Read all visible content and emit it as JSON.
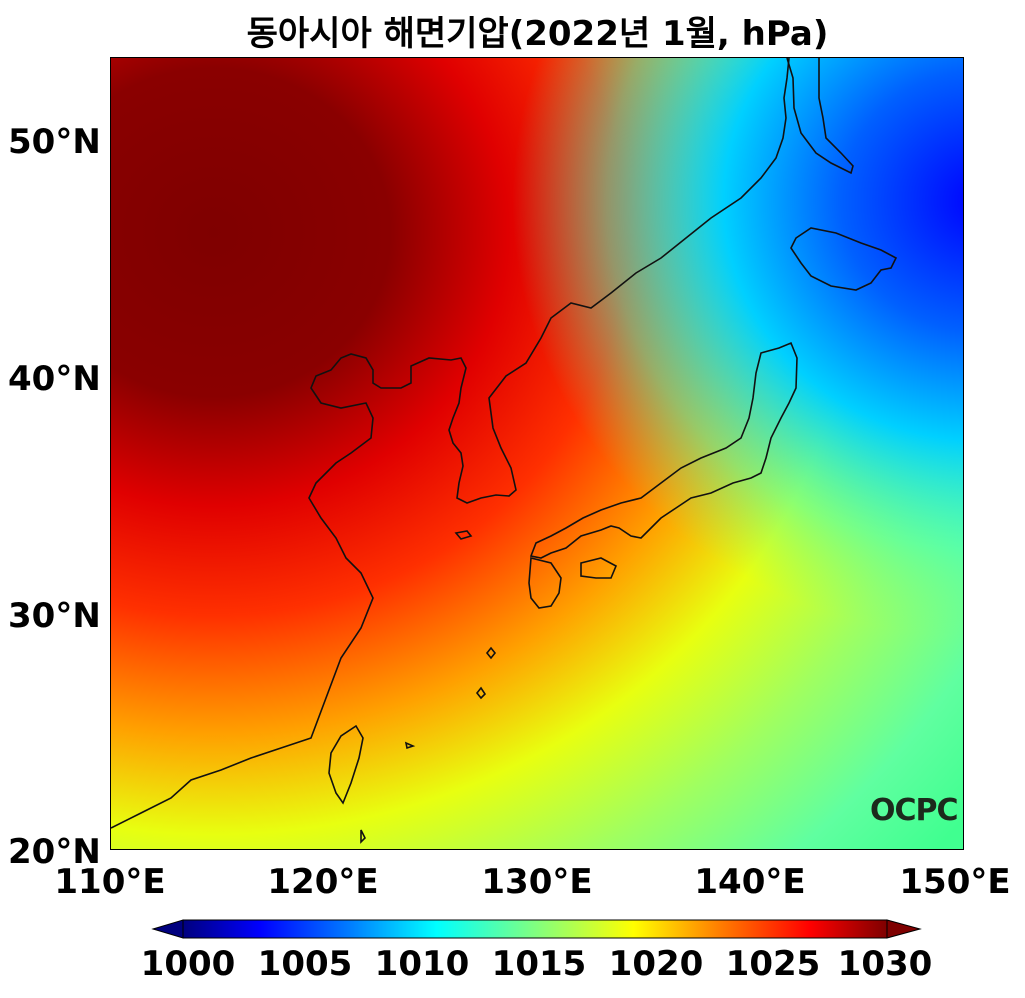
{
  "title": "동아시아 해면기압(2022년 1월, hPa)",
  "map": {
    "extent": {
      "lon": [
        110,
        150
      ],
      "lat": [
        20,
        53.5
      ]
    },
    "variable": "sea level pressure",
    "unit": "hPa",
    "colormap": "jet",
    "color_range": [
      1000,
      1030
    ],
    "x_ticks": [
      "110°E",
      "120°E",
      "130°E",
      "140°E",
      "150°E"
    ],
    "y_ticks": [
      "20°N",
      "30°N",
      "40°N",
      "50°N"
    ],
    "coastlines": true,
    "pressure_pattern": "high pressure (>1030) over northwest interior of China/Mongolia, decreasing toward southeast Pacific (~1015) and lowest (~1005) near northeast Hokkaido/Kuril"
  },
  "colorbar": {
    "ticks": [
      "1000",
      "1005",
      "1010",
      "1015",
      "1020",
      "1025",
      "1030"
    ],
    "extend": "both",
    "colors": [
      "#00007f",
      "#0000ff",
      "#0080ff",
      "#00ffff",
      "#80ff80",
      "#ffff00",
      "#ff8000",
      "#ff0000",
      "#7f0000"
    ]
  },
  "logo": {
    "text": "OCPC"
  }
}
